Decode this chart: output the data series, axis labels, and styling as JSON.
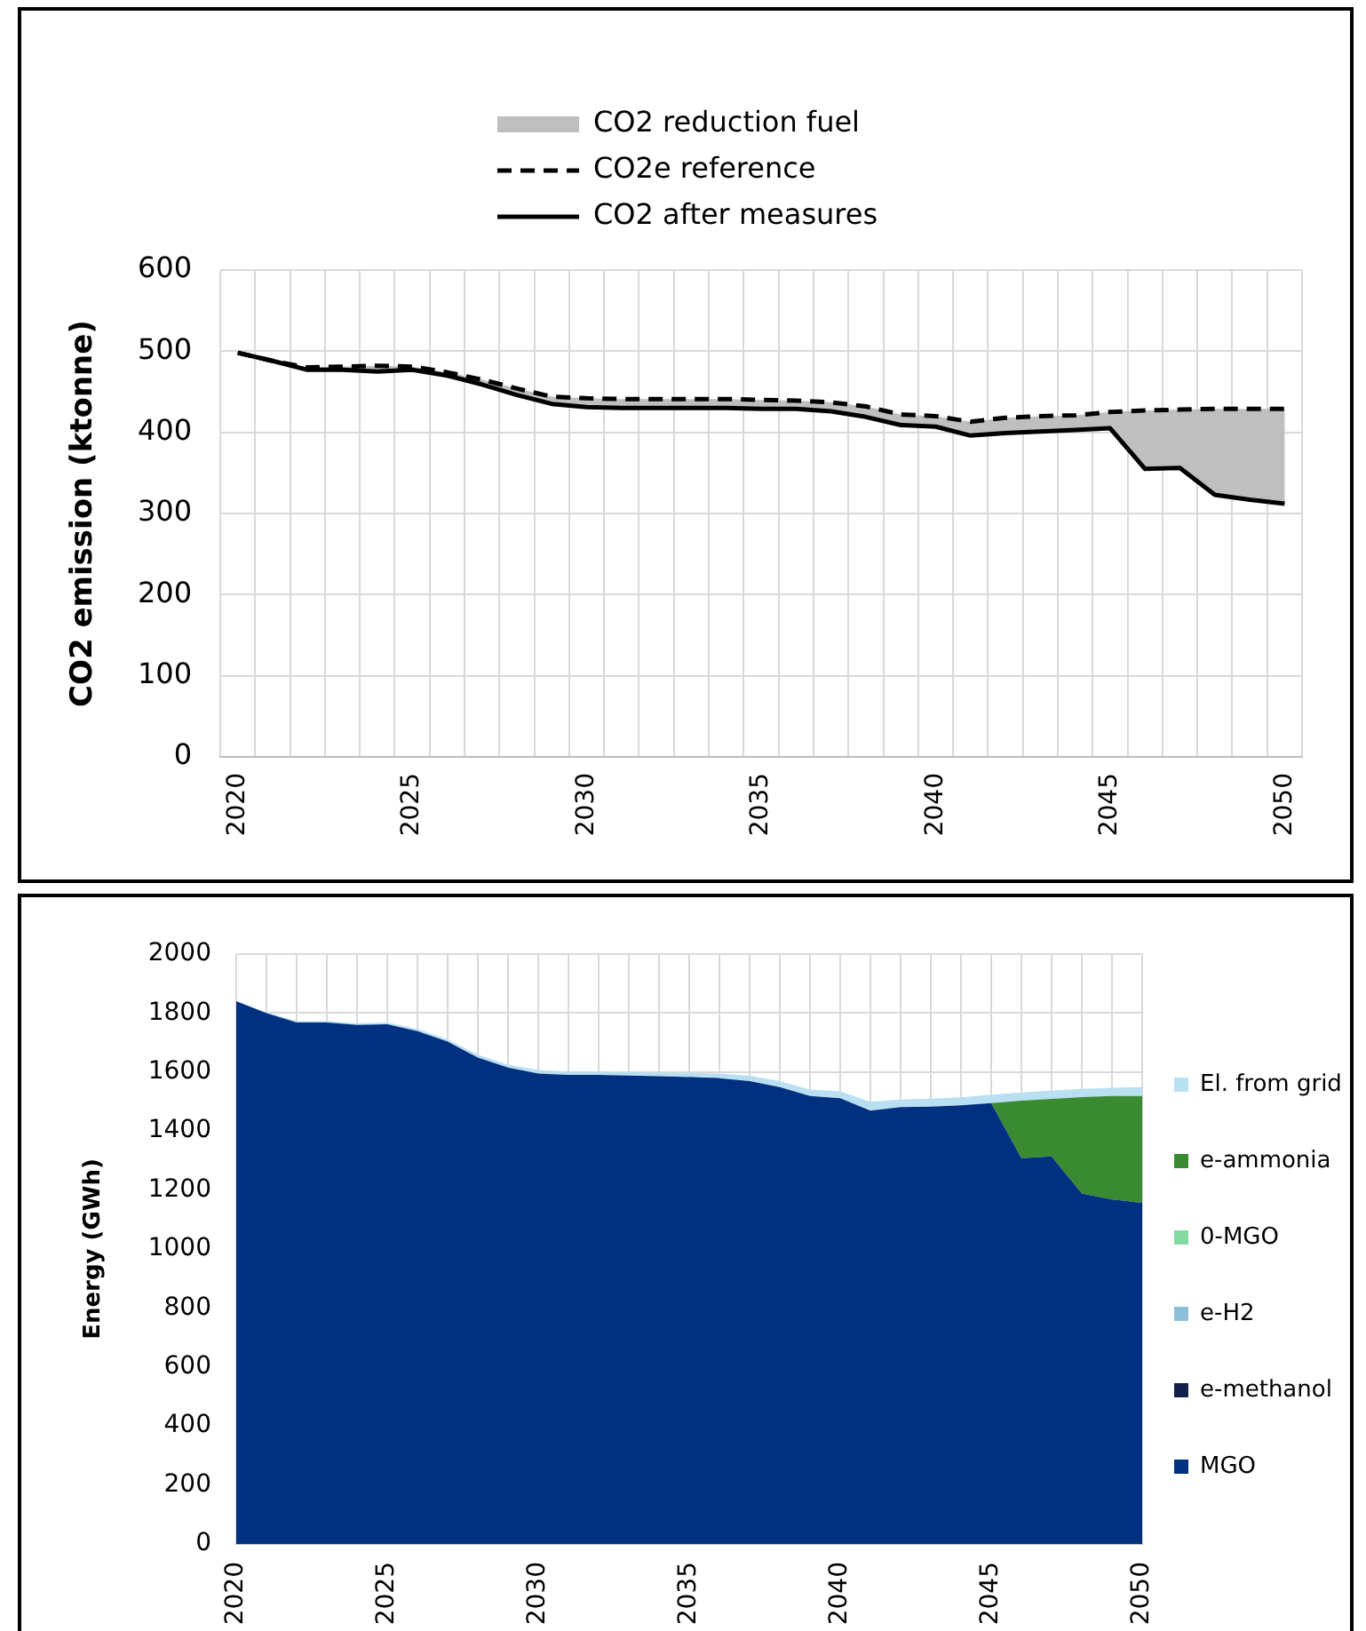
{
  "chart_data": [
    {
      "type": "line",
      "ylabel": "CO2 emission (ktonne)",
      "categories": [
        "2020",
        null,
        null,
        null,
        null,
        "2025",
        null,
        null,
        null,
        null,
        "2030",
        null,
        null,
        null,
        null,
        "2035",
        null,
        null,
        null,
        null,
        "2040",
        null,
        null,
        null,
        null,
        "2045",
        null,
        null,
        null,
        null,
        "2050"
      ],
      "series": [
        {
          "name": "CO2 reduction fuel",
          "type": "area",
          "color": "#bfbfbf",
          "values": [
            null,
            null,
            null,
            null,
            null,
            null,
            null,
            null,
            null,
            null,
            null,
            null,
            null,
            null,
            null,
            null,
            null,
            null,
            null,
            null,
            null,
            null,
            null,
            null,
            null,
            null,
            null,
            null,
            null,
            null,
            null
          ],
          "lower": [
            498,
            488,
            477,
            477,
            475,
            477,
            470,
            459,
            446,
            435,
            431,
            430,
            430,
            430,
            430,
            429,
            429,
            426,
            419,
            409,
            407,
            396,
            399,
            401,
            403,
            405,
            355,
            356,
            323,
            317,
            312
          ],
          "upper": [
            498,
            488,
            480,
            481,
            482,
            481,
            474,
            465,
            454,
            444,
            442,
            441,
            441,
            441,
            441,
            440,
            439,
            437,
            432,
            422,
            420,
            413,
            418,
            420,
            421,
            425,
            427,
            428,
            429,
            429,
            429
          ]
        },
        {
          "name": "CO2e reference",
          "color": "#000000",
          "line_style": "dashed",
          "values": [
            498,
            488,
            480,
            481,
            482,
            481,
            474,
            465,
            454,
            444,
            442,
            441,
            441,
            441,
            441,
            440,
            439,
            437,
            432,
            422,
            420,
            413,
            418,
            420,
            421,
            425,
            427,
            428,
            429,
            429,
            429
          ]
        },
        {
          "name": "CO2 after measures",
          "color": "#000000",
          "line_style": "solid",
          "values": [
            498,
            488,
            477,
            477,
            475,
            477,
            470,
            459,
            446,
            435,
            431,
            430,
            430,
            430,
            430,
            429,
            429,
            426,
            419,
            409,
            407,
            396,
            399,
            401,
            403,
            405,
            355,
            356,
            323,
            317,
            312
          ]
        }
      ],
      "ylim": [
        0,
        600
      ],
      "yticks": [
        0,
        100,
        200,
        300,
        400,
        500,
        600
      ],
      "grid": true,
      "legend": "top",
      "marker": "none"
    },
    {
      "type": "area",
      "ylabel": "Energy (GWh)",
      "stacked": true,
      "categories": [
        "2020",
        null,
        null,
        null,
        null,
        "2025",
        null,
        null,
        null,
        null,
        "2030",
        null,
        null,
        null,
        null,
        "2035",
        null,
        null,
        null,
        null,
        "2040",
        null,
        null,
        null,
        null,
        "2045",
        null,
        null,
        null,
        null,
        "2050"
      ],
      "series": [
        {
          "name": "MGO",
          "color": "#003080",
          "values": [
            1840,
            1800,
            1768,
            1768,
            1760,
            1762,
            1739,
            1703,
            1649,
            1615,
            1595,
            1590,
            1590,
            1588,
            1586,
            1583,
            1579,
            1569,
            1549,
            1519,
            1511,
            1469,
            1481,
            1483,
            1487,
            1495,
            1308,
            1314,
            1188,
            1168,
            1157
          ]
        },
        {
          "name": "e-methanol",
          "color": "#13214a",
          "values": [
            null,
            null,
            null,
            null,
            null,
            null,
            null,
            null,
            null,
            null,
            null,
            null,
            null,
            null,
            null,
            null,
            null,
            null,
            null,
            null,
            null,
            null,
            null,
            null,
            null,
            null,
            null,
            null,
            null,
            null,
            null
          ]
        },
        {
          "name": "e-H2",
          "color": "#8dc0d8",
          "values": [
            null,
            null,
            null,
            null,
            null,
            null,
            null,
            null,
            null,
            null,
            null,
            null,
            null,
            null,
            null,
            null,
            null,
            null,
            null,
            null,
            null,
            null,
            null,
            null,
            null,
            null,
            null,
            null,
            null,
            null,
            null
          ]
        },
        {
          "name": "0-MGO",
          "color": "#82dca2",
          "values": [
            null,
            null,
            null,
            null,
            null,
            null,
            null,
            null,
            null,
            null,
            null,
            null,
            null,
            null,
            null,
            null,
            null,
            null,
            null,
            null,
            null,
            null,
            null,
            null,
            null,
            null,
            null,
            null,
            null,
            null,
            null
          ]
        },
        {
          "name": "e-ammonia",
          "color": "#3a8a32",
          "values": [
            null,
            null,
            null,
            null,
            null,
            null,
            null,
            null,
            null,
            null,
            null,
            null,
            null,
            null,
            null,
            null,
            null,
            null,
            null,
            null,
            null,
            null,
            null,
            null,
            null,
            0,
            195,
            195,
            327,
            351,
            362
          ]
        },
        {
          "name": "El. from grid",
          "color": "#b8e0f2",
          "values": [
            0,
            3,
            5,
            5,
            5,
            6,
            7,
            8,
            10,
            10,
            12,
            12,
            12,
            12,
            12,
            14,
            16,
            18,
            20,
            22,
            24,
            30,
            26,
            27,
            27,
            28,
            28,
            28,
            28,
            28,
            30
          ]
        }
      ],
      "ylim": [
        0,
        2000
      ],
      "yticks": [
        0,
        200,
        400,
        600,
        800,
        1000,
        1200,
        1400,
        1600,
        1800,
        2000
      ],
      "grid": true,
      "legend": "right"
    }
  ]
}
